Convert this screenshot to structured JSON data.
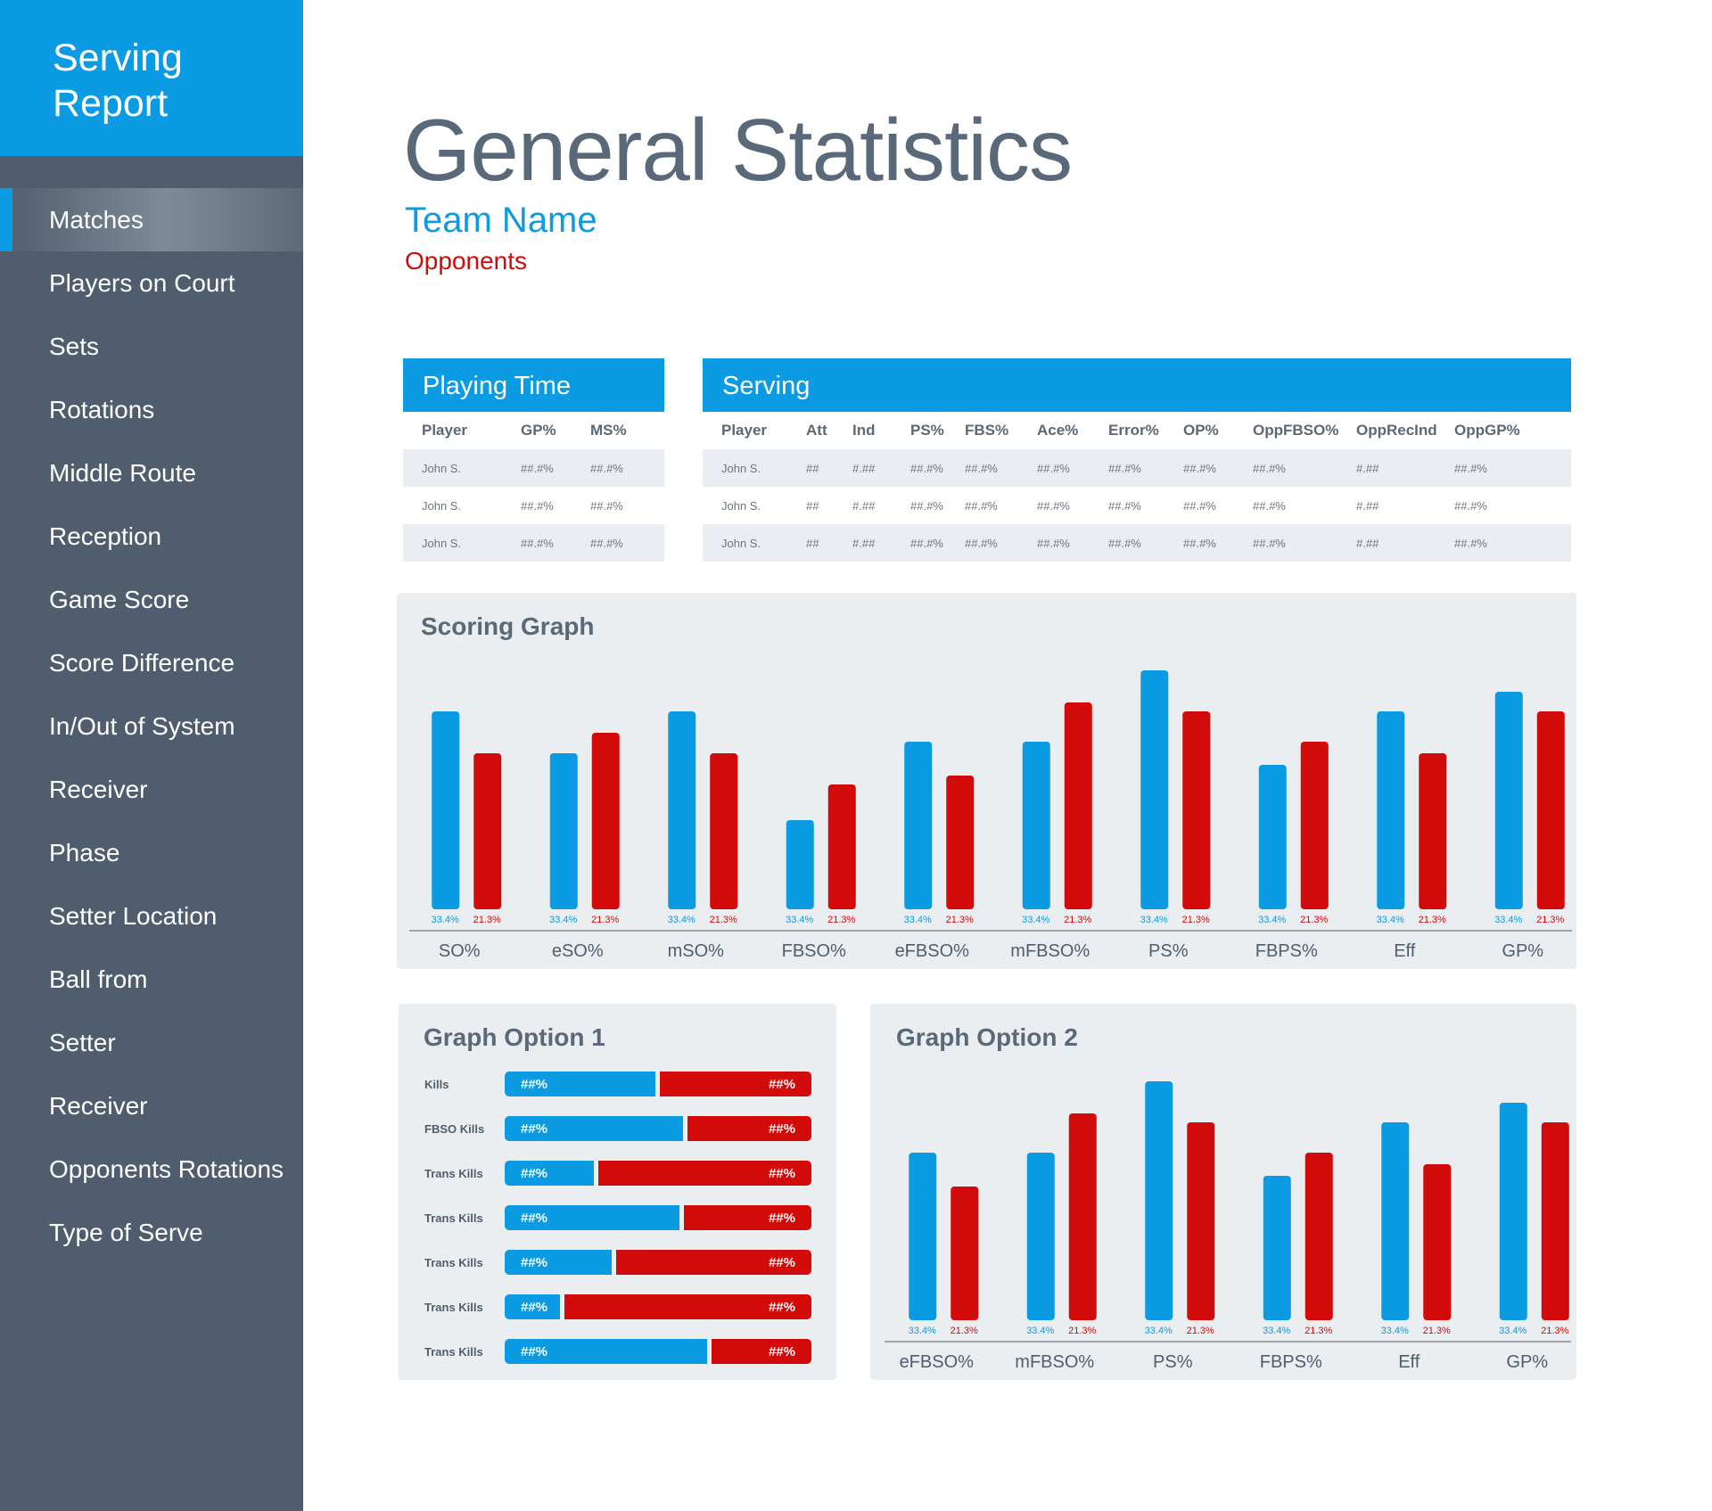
{
  "app": {
    "title_line1": "Serving",
    "title_line2": "Report"
  },
  "nav": [
    {
      "label": "Matches",
      "active": true
    },
    {
      "label": "Players on Court"
    },
    {
      "label": "Sets"
    },
    {
      "label": "Rotations"
    },
    {
      "label": "Middle Route"
    },
    {
      "label": "Reception"
    },
    {
      "label": "Game Score"
    },
    {
      "label": "Score Difference"
    },
    {
      "label": "In/Out of System"
    },
    {
      "label": "Receiver"
    },
    {
      "label": "Phase"
    },
    {
      "label": "Setter Location"
    },
    {
      "label": "Ball from"
    },
    {
      "label": "Setter"
    },
    {
      "label": "Receiver"
    },
    {
      "label": "Opponents Rotations"
    },
    {
      "label": "Type of Serve"
    }
  ],
  "header": {
    "title": "General Statistics",
    "team": "Team Name",
    "opponents": "Opponents"
  },
  "colors": {
    "team": "#0b9be3",
    "opponents": "#d20a0a",
    "sidebar": "#4f5d6e",
    "panel": "#ebeef1"
  },
  "playing_time": {
    "title": "Playing Time",
    "columns": [
      "Player",
      "GP%",
      "MS%"
    ],
    "rows": [
      [
        "John S.",
        "##.#%",
        "##.#%"
      ],
      [
        "John S.",
        "##.#%",
        "##.#%"
      ],
      [
        "John S.",
        "##.#%",
        "##.#%"
      ]
    ]
  },
  "serving": {
    "title": "Serving",
    "columns": [
      "Player",
      "Att",
      "Ind",
      "PS%",
      "FBS%",
      "Ace%",
      "Error%",
      "OP%",
      "OppFBSO%",
      "OppRecInd",
      "OppGP%"
    ],
    "rows": [
      [
        "John S.",
        "##",
        "#.##",
        "##.#%",
        "##.#%",
        "##.#%",
        "##.#%",
        "##.#%",
        "##.#%",
        "#.##",
        "##.#%"
      ],
      [
        "John S.",
        "##",
        "#.##",
        "##.#%",
        "##.#%",
        "##.#%",
        "##.#%",
        "##.#%",
        "##.#%",
        "#.##",
        "##.#%"
      ],
      [
        "John S.",
        "##",
        "#.##",
        "##.#%",
        "##.#%",
        "##.#%",
        "##.#%",
        "##.#%",
        "##.#%",
        "#.##",
        "##.#%"
      ]
    ]
  },
  "chart_data": [
    {
      "type": "bar",
      "title": "Scoring Graph",
      "categories": [
        "SO%",
        "eSO%",
        "mSO%",
        "FBSO%",
        "eFBSO%",
        "mFBSO%",
        "PS%",
        "FBPS%",
        "Eff",
        "GP%"
      ],
      "series": [
        {
          "color": "#0b9be3",
          "values": [
            222,
            175,
            222,
            100,
            188,
            188,
            268,
            162,
            222,
            244
          ],
          "label": "33.4%"
        },
        {
          "color": "#d20a0a",
          "values": [
            175,
            198,
            175,
            140,
            150,
            232,
            222,
            188,
            175,
            222
          ],
          "label": "21.3%"
        }
      ]
    },
    {
      "type": "bar_stacked_horizontal",
      "title": "Graph Option 1",
      "categories": [
        "Kills",
        "FBSO Kills",
        "Trans Kills",
        "Trans Kills",
        "Trans Kills",
        "Trans Kills",
        "Trans Kills"
      ],
      "team_share": [
        0.49,
        0.58,
        0.29,
        0.57,
        0.35,
        0.18,
        0.66
      ],
      "team_label": "##%",
      "opponent_label": "##%"
    },
    {
      "type": "bar",
      "title": "Graph Option 2",
      "categories": [
        "eFBSO%",
        "mFBSO%",
        "PS%",
        "FBPS%",
        "Eff",
        "GP%"
      ],
      "series": [
        {
          "color": "#0b9be3",
          "values": [
            188,
            188,
            268,
            162,
            222,
            244
          ],
          "label": "33.4%"
        },
        {
          "color": "#d20a0a",
          "values": [
            150,
            232,
            222,
            188,
            175,
            222
          ],
          "label": "21.3%"
        }
      ]
    }
  ]
}
